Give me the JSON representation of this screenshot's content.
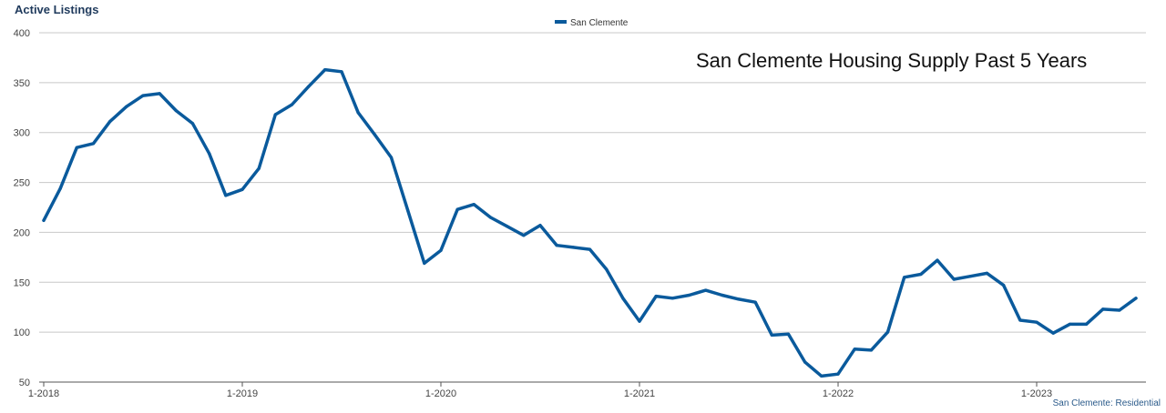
{
  "chart_data": {
    "type": "line",
    "title": "San Clemente Housing Supply Past 5 Years",
    "ylabel": "Active Listings",
    "xlabel": "",
    "source_note": "San Clemente: Residential",
    "ylim": [
      50,
      400
    ],
    "yticks": [
      50,
      100,
      150,
      200,
      250,
      300,
      350,
      400
    ],
    "xticks": [
      "1-2018",
      "1-2019",
      "1-2020",
      "1-2021",
      "1-2022",
      "1-2023"
    ],
    "grid": true,
    "legend_position": "top-center",
    "line_color": "#0a5a9c",
    "series": [
      {
        "name": "San Clemente",
        "x_start": "1-2018",
        "frequency": "monthly",
        "values": [
          212,
          244,
          285,
          289,
          311,
          326,
          337,
          339,
          322,
          309,
          279,
          237,
          243,
          264,
          318,
          328,
          346,
          363,
          361,
          320,
          298,
          275,
          222,
          169,
          182,
          223,
          228,
          215,
          206,
          197,
          207,
          187,
          185,
          183,
          163,
          134,
          111,
          136,
          134,
          137,
          142,
          137,
          133,
          130,
          97,
          98,
          70,
          56,
          58,
          83,
          82,
          100,
          155,
          158,
          172,
          153,
          156,
          159,
          147,
          112,
          110,
          99,
          108,
          108,
          123,
          122,
          134
        ]
      }
    ]
  }
}
